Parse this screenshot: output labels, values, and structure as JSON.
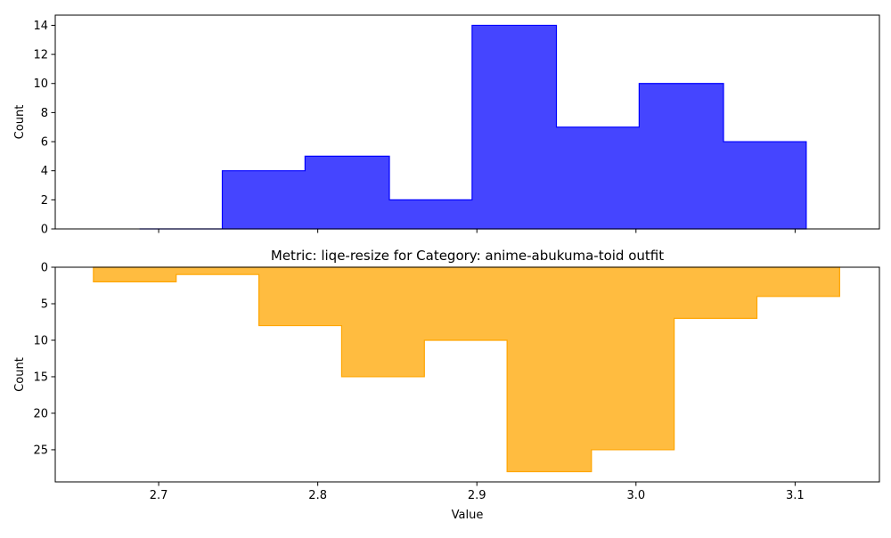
{
  "chart_data": [
    {
      "type": "histogram",
      "title": "",
      "xlabel": "",
      "ylabel": "Count",
      "xlim": [
        2.635,
        3.153
      ],
      "ylim": [
        0,
        14.7
      ],
      "y_inverted": false,
      "grid": false,
      "fill_color": "#0000ff",
      "edge_color": "#0000ff",
      "fill_alpha": 0.73,
      "x_ticks": [
        2.7,
        2.8,
        2.9,
        3.0,
        3.1
      ],
      "x_tick_labels_visible": false,
      "y_ticks": [
        0,
        2,
        4,
        6,
        8,
        10,
        12,
        14
      ],
      "y_tick_labels": [
        "0",
        "2",
        "4",
        "6",
        "8",
        "10",
        "12",
        "14"
      ],
      "bin_edges": [
        2.688,
        2.74,
        2.792,
        2.845,
        2.897,
        2.95,
        3.002,
        3.055,
        3.107
      ],
      "counts": [
        0,
        4,
        5,
        2,
        14,
        7,
        10,
        6
      ]
    },
    {
      "type": "histogram",
      "title": "Metric: liqe-resize for Category: anime-abukuma-toid outfit",
      "xlabel": "Value",
      "ylabel": "Count",
      "xlim": [
        2.635,
        3.153
      ],
      "ylim": [
        29.4,
        0
      ],
      "y_inverted": true,
      "grid": false,
      "fill_color": "#ffa500",
      "edge_color": "#ffa500",
      "fill_alpha": 0.75,
      "x_ticks": [
        2.7,
        2.8,
        2.9,
        3.0,
        3.1
      ],
      "x_tick_labels": [
        "2.7",
        "2.8",
        "2.9",
        "3.0",
        "3.1"
      ],
      "x_tick_labels_visible": true,
      "y_ticks": [
        0,
        5,
        10,
        15,
        20,
        25
      ],
      "y_tick_labels": [
        "0",
        "5",
        "10",
        "15",
        "20",
        "25"
      ],
      "bin_edges": [
        2.659,
        2.711,
        2.763,
        2.815,
        2.867,
        2.919,
        2.972,
        3.024,
        3.076,
        3.128
      ],
      "counts": [
        2,
        1,
        8,
        15,
        10,
        28,
        25,
        7,
        4
      ]
    }
  ]
}
